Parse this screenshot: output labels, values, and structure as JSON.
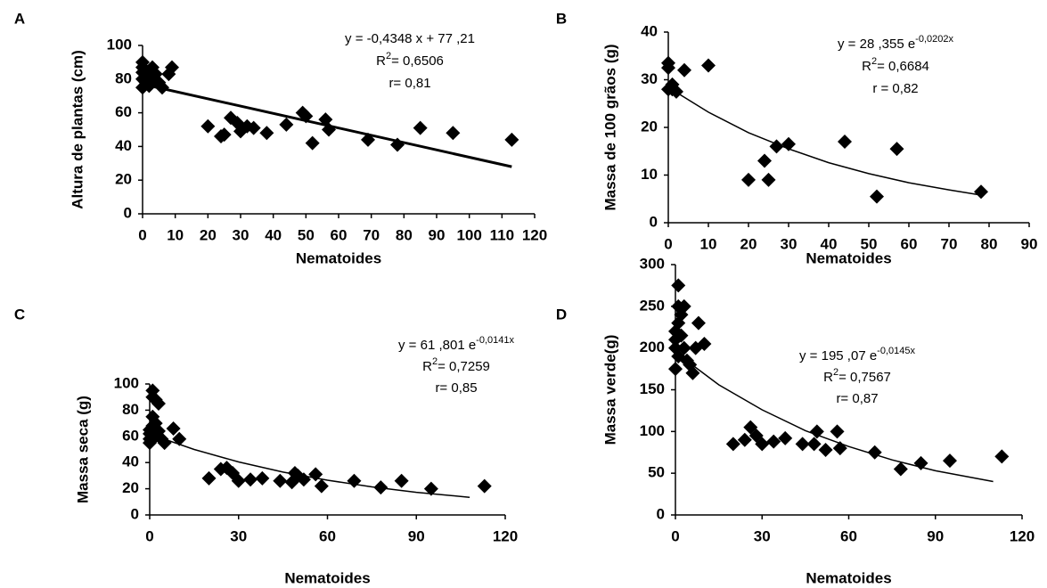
{
  "chart_data": [
    {
      "type": "scatter",
      "panel_label": "A",
      "xlabel": "Nematoides",
      "ylabel": "Altura de plantas (cm)",
      "color": "#000000",
      "annotations": {
        "equation": {
          "text": "y = -0,4348 x + 77 ,21"
        },
        "r2": {
          "text": "R",
          "exponent": "2",
          "rest": "= 0,6506"
        },
        "r": {
          "text": "r= 0,81"
        }
      },
      "x": [
        0,
        0,
        0,
        0,
        0,
        1,
        1,
        2,
        2,
        3,
        3,
        4,
        5,
        6,
        8,
        9,
        20,
        24,
        25,
        27,
        29,
        30,
        32,
        34,
        38,
        44,
        49,
        50,
        52,
        56,
        57,
        69,
        78,
        85,
        95,
        113
      ],
      "y": [
        90,
        87,
        84,
        80,
        75,
        85,
        78,
        82,
        76,
        87,
        80,
        83,
        78,
        75,
        83,
        87,
        52,
        46,
        47,
        57,
        54,
        49,
        52,
        51,
        48,
        53,
        60,
        58,
        42,
        56,
        50,
        44,
        41,
        51,
        48,
        44
      ],
      "trend": {
        "x": [
          0,
          113
        ],
        "y": [
          77,
          28
        ]
      },
      "xlim": [
        0,
        120
      ],
      "ylim": [
        0,
        100
      ],
      "xticks": [
        0,
        10,
        20,
        30,
        40,
        50,
        60,
        70,
        80,
        90,
        100,
        110,
        120
      ],
      "yticks": [
        0,
        20,
        40,
        60,
        80,
        100
      ]
    },
    {
      "type": "scatter",
      "panel_label": "B",
      "xlabel": "Nematoides",
      "ylabel": "Massa de 100 grãos (g)",
      "color": "#000000",
      "annotations": {
        "equation": {
          "text": "y = 28 ,355 e",
          "exponent": "-0,0202x"
        },
        "r2": {
          "text": "R",
          "exponent": "2",
          "rest": "= 0,6684"
        },
        "r": {
          "text": "r =  0,82"
        }
      },
      "x": [
        0,
        0,
        0,
        1,
        1,
        2,
        4,
        10,
        20,
        24,
        25,
        27,
        30,
        44,
        52,
        57,
        78
      ],
      "y": [
        33.5,
        32.5,
        28,
        29,
        28,
        27.5,
        32,
        33,
        9,
        13,
        9,
        16,
        16.5,
        17,
        5.5,
        15.5,
        6.5
      ],
      "trend": {
        "x": [
          0,
          10,
          20,
          30,
          40,
          50,
          60,
          70,
          78
        ],
        "y": [
          28.4,
          23.2,
          18.9,
          15.5,
          12.6,
          10.3,
          8.4,
          6.9,
          5.8
        ]
      },
      "xlim": [
        0,
        90
      ],
      "ylim": [
        0,
        40
      ],
      "xticks": [
        0,
        10,
        20,
        30,
        40,
        50,
        60,
        70,
        80,
        90
      ],
      "yticks": [
        0,
        10,
        20,
        30,
        40
      ]
    },
    {
      "type": "scatter",
      "panel_label": "C",
      "xlabel": "Nematoides",
      "ylabel": "Massa seca (g)",
      "color": "#000000",
      "annotations": {
        "equation": {
          "text": "y = 61 ,801 e",
          "exponent": "-0,0141x"
        },
        "r2": {
          "text": "R",
          "exponent": "2",
          "rest": "= 0,7259"
        },
        "r": {
          "text": "r= 0,85"
        }
      },
      "x": [
        0,
        0,
        0,
        0,
        1,
        1,
        1,
        1,
        2,
        2,
        2,
        3,
        3,
        4,
        5,
        8,
        10,
        20,
        24,
        26,
        28,
        30,
        34,
        38,
        44,
        48,
        49,
        50,
        52,
        56,
        58,
        69,
        78,
        85,
        95,
        113
      ],
      "y": [
        55,
        58,
        62,
        65,
        95,
        90,
        75,
        68,
        88,
        70,
        60,
        85,
        64,
        58,
        55,
        66,
        58,
        28,
        35,
        36,
        32,
        26,
        27,
        28,
        26,
        25,
        32,
        30,
        27,
        31,
        22,
        26,
        21,
        26,
        20,
        22
      ],
      "trend": {
        "x": [
          0,
          15,
          30,
          45,
          60,
          75,
          90,
          108
        ],
        "y": [
          61.8,
          50,
          40.5,
          32.7,
          26.5,
          21.4,
          17.3,
          13.5
        ]
      },
      "xlim": [
        0,
        120
      ],
      "ylim": [
        0,
        100
      ],
      "xticks": [
        0,
        30,
        60,
        90,
        120
      ],
      "yticks": [
        0,
        20,
        40,
        60,
        80,
        100
      ]
    },
    {
      "type": "scatter",
      "panel_label": "D",
      "xlabel": "Nematoides",
      "ylabel": "Massa verde(g)",
      "color": "#000000",
      "annotations": {
        "equation": {
          "text": "y = 195 ,07 e",
          "exponent": "-0,0145x"
        },
        "r2": {
          "text": "R",
          "exponent": "2",
          "rest": "= 0,7567"
        },
        "r": {
          "text": "r= 0,87"
        }
      },
      "x": [
        0,
        0,
        0,
        0,
        1,
        1,
        1,
        1,
        2,
        2,
        3,
        3,
        4,
        5,
        6,
        7,
        8,
        10,
        20,
        24,
        26,
        28,
        30,
        34,
        38,
        44,
        48,
        49,
        52,
        56,
        57,
        69,
        78,
        85,
        95,
        113
      ],
      "y": [
        175,
        200,
        210,
        220,
        275,
        250,
        230,
        190,
        240,
        215,
        250,
        200,
        185,
        180,
        170,
        200,
        230,
        205,
        85,
        90,
        105,
        95,
        85,
        88,
        92,
        85,
        85,
        100,
        78,
        100,
        80,
        75,
        55,
        62,
        65,
        70
      ],
      "trend": {
        "x": [
          0,
          15,
          30,
          45,
          60,
          75,
          90,
          110
        ],
        "y": [
          195,
          156,
          126,
          101,
          82,
          66,
          53,
          40
        ]
      },
      "xlim": [
        0,
        120
      ],
      "ylim": [
        0,
        300
      ],
      "xticks": [
        0,
        30,
        60,
        90,
        120
      ],
      "yticks": [
        0,
        50,
        100,
        150,
        200,
        250,
        300
      ]
    }
  ]
}
